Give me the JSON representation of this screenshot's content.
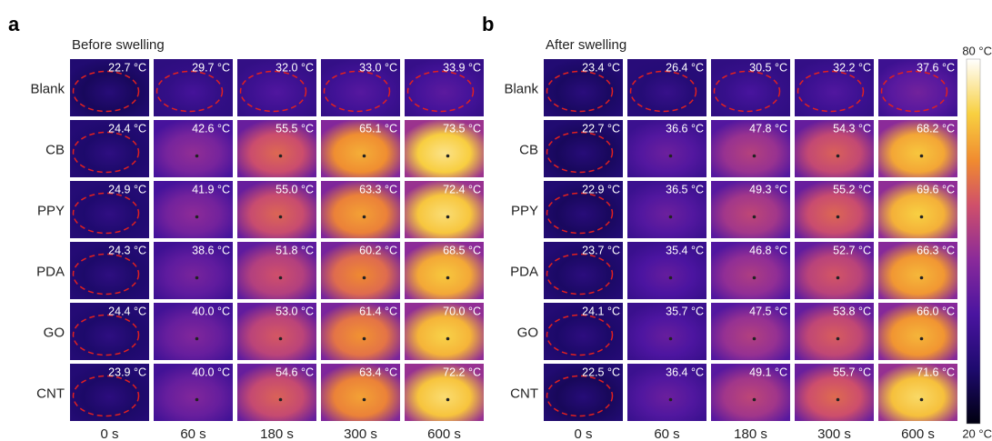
{
  "panels": [
    {
      "letter": "a",
      "title": "Before swelling",
      "columns": [
        "0 s",
        "60 s",
        "180 s",
        "300 s",
        "600 s"
      ],
      "rows": [
        {
          "label": "Blank",
          "cells": [
            "22.7 °C",
            "29.7 °C",
            "32.0 °C",
            "33.0 °C",
            "33.9 °C"
          ]
        },
        {
          "label": "CB",
          "cells": [
            "24.4 °C",
            "42.6 °C",
            "55.5 °C",
            "65.1 °C",
            "73.5 °C"
          ]
        },
        {
          "label": "PPY",
          "cells": [
            "24.9 °C",
            "41.9 °C",
            "55.0 °C",
            "63.3 °C",
            "72.4 °C"
          ]
        },
        {
          "label": "PDA",
          "cells": [
            "24.3 °C",
            "38.6 °C",
            "51.8 °C",
            "60.2 °C",
            "68.5 °C"
          ]
        },
        {
          "label": "GO",
          "cells": [
            "24.4 °C",
            "40.0 °C",
            "53.0 °C",
            "61.4 °C",
            "70.0 °C"
          ]
        },
        {
          "label": "CNT",
          "cells": [
            "23.9 °C",
            "40.0 °C",
            "54.6 °C",
            "63.4 °C",
            "72.2 °C"
          ]
        }
      ]
    },
    {
      "letter": "b",
      "title": "After swelling",
      "columns": [
        "0 s",
        "60 s",
        "180 s",
        "300 s",
        "600 s"
      ],
      "rows": [
        {
          "label": "Blank",
          "cells": [
            "23.4 °C",
            "26.4 °C",
            "30.5 °C",
            "32.2 °C",
            "37.6 °C"
          ]
        },
        {
          "label": "CB",
          "cells": [
            "22.7 °C",
            "36.6 °C",
            "47.8 °C",
            "54.3 °C",
            "68.2 °C"
          ]
        },
        {
          "label": "PPY",
          "cells": [
            "22.9 °C",
            "36.5 °C",
            "49.3 °C",
            "55.2 °C",
            "69.6 °C"
          ]
        },
        {
          "label": "PDA",
          "cells": [
            "23.7 °C",
            "35.4 °C",
            "46.8 °C",
            "52.7 °C",
            "66.3 °C"
          ]
        },
        {
          "label": "GO",
          "cells": [
            "24.1 °C",
            "35.7 °C",
            "47.5 °C",
            "53.8 °C",
            "66.0 °C"
          ]
        },
        {
          "label": "CNT",
          "cells": [
            "22.5 °C",
            "36.4 °C",
            "49.1 °C",
            "55.7 °C",
            "71.6 °C"
          ]
        }
      ]
    }
  ],
  "colorbar": {
    "max": "80 °C",
    "min": "20 °C"
  }
}
